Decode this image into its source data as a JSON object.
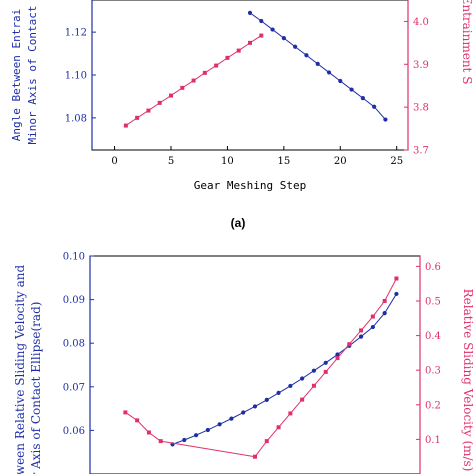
{
  "colors": {
    "blue": "#1f2ea8",
    "red": "#e0306a",
    "axis": "#000000"
  },
  "chart_data": [
    {
      "type": "line",
      "panel_label": "(a)",
      "xlabel": "Gear Meshing Step",
      "ylabel_left": "Angle Between Entrai...",
      "ylabel_left_line1": "Angle Between Entrai",
      "ylabel_left_line2": "Minor Axis of Contact",
      "ylabel_right": "Entrainment S",
      "xlim": [
        -2,
        26
      ],
      "ylim_left": [
        1.065,
        1.135
      ],
      "ylim_right": [
        3.7,
        4.05
      ],
      "xticks": [
        "0",
        "5",
        "10",
        "15",
        "20",
        "25"
      ],
      "yticks_left": [
        "1.08",
        "1.10",
        "1.12"
      ],
      "yticks_right": [
        "3.7",
        "3.8",
        "3.9",
        "4.0"
      ],
      "series": [
        {
          "axis": "left",
          "x": [
            12,
            13,
            14,
            15,
            16,
            17,
            18,
            19,
            20,
            21,
            22,
            23,
            24
          ],
          "values": [
            1.129,
            1.1252,
            1.1212,
            1.1172,
            1.1132,
            1.1092,
            1.1052,
            1.1012,
            1.0972,
            1.0932,
            1.0892,
            1.0852,
            1.0792
          ]
        },
        {
          "axis": "right",
          "x": [
            1,
            2,
            3,
            4,
            5,
            6,
            7,
            8,
            9,
            10,
            11,
            12,
            13
          ],
          "values": [
            3.757,
            3.775,
            3.792,
            3.81,
            3.827,
            3.845,
            3.862,
            3.88,
            3.897,
            3.915,
            3.932,
            3.95,
            3.967
          ]
        }
      ]
    },
    {
      "type": "line",
      "ylabel_left": "ween Relative Sliding Velocity and",
      "ylabel_left_line1": "ween Relative Sliding Velocity and",
      "ylabel_left_line2": "r Axis of Contact Ellipse(rad)",
      "ylabel_right": "Relative Sliding Velocity (m/s)",
      "xlim": [
        -2,
        26
      ],
      "ylim_left": [
        0.05,
        0.1
      ],
      "ylim_right": [
        0.0,
        0.63
      ],
      "yticks_left": [
        "0.06",
        "0.07",
        "0.08",
        "0.09",
        "0.10"
      ],
      "yticks_right": [
        "0.1",
        "0.2",
        "0.3",
        "0.4",
        "0.5",
        "0.6"
      ],
      "series": [
        {
          "axis": "left",
          "x": [
            5,
            6,
            7,
            8,
            9,
            10,
            11,
            12,
            13,
            14,
            15,
            16,
            17,
            18,
            19,
            20,
            21,
            22,
            23,
            24
          ],
          "values": [
            0.0568,
            0.0578,
            0.0589,
            0.0601,
            0.0614,
            0.0627,
            0.0641,
            0.0655,
            0.067,
            0.0686,
            0.0702,
            0.0719,
            0.0737,
            0.0755,
            0.0774,
            0.0794,
            0.0815,
            0.0837,
            0.0869,
            0.0913
          ]
        },
        {
          "axis": "right",
          "x": [
            1,
            2,
            3,
            4,
            12,
            13,
            14,
            15,
            16,
            17,
            18,
            19,
            20,
            21,
            22,
            23,
            24
          ],
          "values": [
            0.178,
            0.155,
            0.12,
            0.095,
            0.05,
            0.095,
            0.135,
            0.175,
            0.215,
            0.255,
            0.295,
            0.335,
            0.375,
            0.415,
            0.455,
            0.5,
            0.565
          ]
        }
      ]
    }
  ]
}
